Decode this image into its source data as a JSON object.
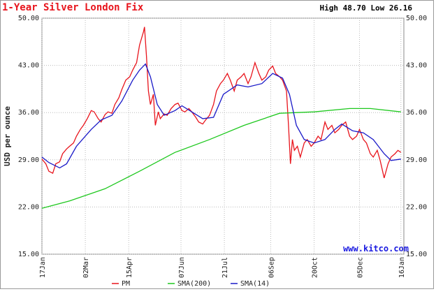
{
  "chart_data": {
    "type": "line",
    "title": "1-Year Silver London Fix",
    "subtitle": "High 48.70 Low 26.16",
    "ylabel": "USD per ounce",
    "watermark": "www.kitco.com",
    "xlim": [
      0,
      367
    ],
    "xticks": [
      {
        "value": 0,
        "label": "17Jan"
      },
      {
        "value": 44,
        "label": "02Mar"
      },
      {
        "value": 88,
        "label": "15Apr"
      },
      {
        "value": 141,
        "label": "07Jun"
      },
      {
        "value": 185,
        "label": "21Jul"
      },
      {
        "value": 232,
        "label": "06Sep"
      },
      {
        "value": 276,
        "label": "20Oct"
      },
      {
        "value": 322,
        "label": "05Dec"
      },
      {
        "value": 364,
        "label": "16Jan"
      }
    ],
    "ylim": [
      15,
      50
    ],
    "yticks": [
      {
        "value": 15,
        "label": "15.00"
      },
      {
        "value": 22,
        "label": "22.00"
      },
      {
        "value": 29,
        "label": "29.00"
      },
      {
        "value": 36,
        "label": "36.00"
      },
      {
        "value": 43,
        "label": "43.00"
      },
      {
        "value": 50,
        "label": "50.00"
      }
    ],
    "grid": true,
    "legend": "bottom",
    "series": [
      {
        "name": "PM",
        "color": "#e8141c",
        "x": [
          0,
          4,
          7,
          11,
          14,
          18,
          21,
          25,
          28,
          32,
          35,
          39,
          42,
          46,
          50,
          53,
          57,
          60,
          64,
          67,
          71,
          74,
          78,
          81,
          85,
          89,
          92,
          96,
          99,
          103,
          104,
          106,
          108,
          110,
          113,
          115,
          118,
          120,
          124,
          127,
          131,
          135,
          138,
          142,
          145,
          149,
          152,
          156,
          159,
          163,
          166,
          170,
          174,
          177,
          181,
          184,
          188,
          191,
          195,
          198,
          202,
          205,
          209,
          212,
          216,
          220,
          223,
          227,
          230,
          234,
          237,
          241,
          244,
          248,
          250,
          252,
          254,
          256,
          259,
          262,
          266,
          269,
          273,
          276,
          280,
          283,
          287,
          290,
          294,
          297,
          301,
          304,
          308,
          312,
          315,
          319,
          322,
          326,
          329,
          333,
          336,
          340,
          343,
          347,
          351,
          354,
          358,
          361,
          364
        ],
        "values": [
          29.1,
          28.4,
          27.3,
          27.0,
          28.4,
          28.7,
          29.9,
          30.6,
          31.0,
          31.5,
          32.5,
          33.5,
          34.1,
          35.1,
          36.3,
          36.1,
          35.1,
          34.6,
          35.7,
          36.1,
          35.9,
          37.2,
          38.2,
          39.4,
          40.8,
          41.3,
          42.3,
          43.4,
          46.0,
          48.0,
          48.7,
          44.4,
          39.2,
          37.2,
          38.7,
          34.1,
          36.1,
          35.1,
          35.8,
          35.6,
          36.6,
          37.2,
          37.4,
          36.3,
          36.1,
          36.6,
          36.1,
          35.3,
          34.6,
          34.3,
          34.9,
          35.6,
          37.2,
          39.2,
          40.3,
          40.8,
          41.8,
          40.8,
          39.2,
          40.8,
          41.3,
          41.8,
          40.3,
          41.3,
          43.4,
          41.8,
          40.8,
          41.3,
          42.3,
          42.9,
          41.8,
          41.3,
          40.8,
          39.2,
          34.1,
          28.4,
          32.0,
          30.4,
          31.0,
          29.4,
          31.5,
          32.0,
          31.0,
          31.5,
          32.5,
          32.0,
          34.6,
          33.5,
          34.1,
          33.0,
          33.5,
          34.1,
          34.6,
          32.5,
          32.0,
          32.5,
          33.5,
          32.0,
          31.5,
          29.9,
          29.4,
          30.4,
          28.9,
          26.3,
          28.4,
          29.4,
          29.9,
          30.4,
          30.1
        ]
      },
      {
        "name": "SMA(200)",
        "color": "#1ec81e",
        "x": [
          0,
          28,
          64,
          99,
          135,
          170,
          205,
          241,
          276,
          312,
          333,
          364
        ],
        "values": [
          21.8,
          22.9,
          24.7,
          27.3,
          30.1,
          32.0,
          34.1,
          35.9,
          36.1,
          36.6,
          36.6,
          36.1
        ]
      },
      {
        "name": "SMA(14)",
        "color": "#1a1ac8",
        "x": [
          0,
          7,
          18,
          25,
          35,
          50,
          60,
          71,
          81,
          92,
          99,
          105,
          110,
          117,
          124,
          135,
          142,
          152,
          163,
          174,
          184,
          198,
          209,
          223,
          234,
          244,
          251,
          258,
          266,
          276,
          287,
          297,
          304,
          315,
          326,
          336,
          347,
          354,
          364
        ],
        "values": [
          29.4,
          28.6,
          27.8,
          28.4,
          31.0,
          33.5,
          34.9,
          35.6,
          37.7,
          40.8,
          42.3,
          43.2,
          41.3,
          37.2,
          35.6,
          36.3,
          37.0,
          36.1,
          35.1,
          35.3,
          38.7,
          40.1,
          39.8,
          40.3,
          41.8,
          41.1,
          38.7,
          34.1,
          32.0,
          31.5,
          32.0,
          33.5,
          34.3,
          33.3,
          33.0,
          32.0,
          29.9,
          28.9,
          29.1
        ]
      }
    ]
  }
}
